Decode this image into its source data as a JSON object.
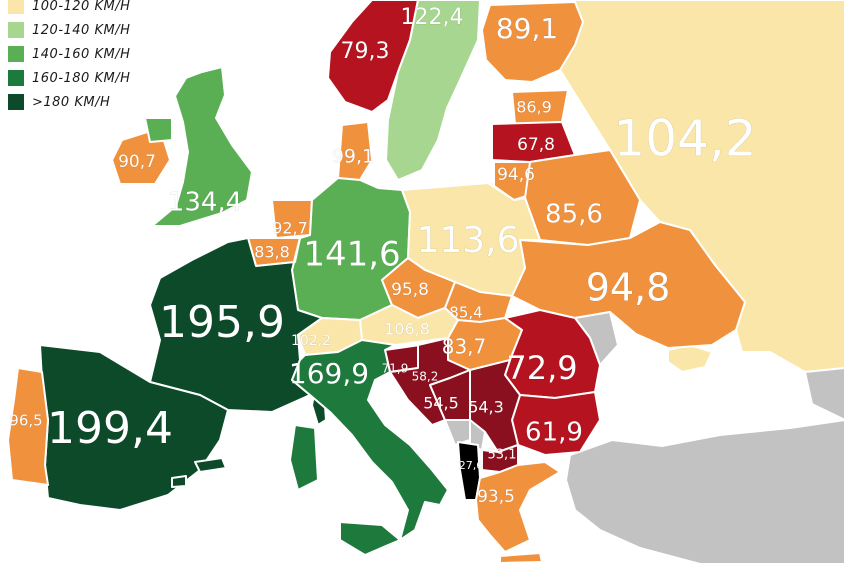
{
  "legend": {
    "items": [
      {
        "label": "100-120 KM/H",
        "color": "#fae6a8"
      },
      {
        "label": "120-140 KM/H",
        "color": "#a6d68f"
      },
      {
        "label": "140-160 KM/H",
        "color": "#5aaf55"
      },
      {
        "label": "160-180 KM/H",
        "color": "#1e7a3c"
      },
      {
        "label": ">180 KM/H",
        "color": "#0c4a2a"
      }
    ]
  },
  "category_colors": {
    "low": "#f0913e",
    "very_low": "#b5131f",
    "very_low_dark": "#8a1020",
    "lowest": "#000000",
    "no_data": "#c2c2c2",
    "sea": "#ffffff"
  },
  "countries": {
    "norway": {
      "value": "79,3"
    },
    "sweden": {
      "value": "122,4"
    },
    "finland": {
      "value": "89,1"
    },
    "russia": {
      "value": "104,2"
    },
    "estonia": {
      "value": "86,9"
    },
    "latvia": {
      "value": "67,8"
    },
    "lithuania": {
      "value": "94,6"
    },
    "belarus": {
      "value": "85,6"
    },
    "ukraine": {
      "value": "94,8"
    },
    "ireland": {
      "value": "90,7"
    },
    "uk": {
      "value": "134,4"
    },
    "denmark": {
      "value": "99,1"
    },
    "netherlands": {
      "value": "92,7"
    },
    "belgium": {
      "value": "83,8"
    },
    "germany": {
      "value": "141,6"
    },
    "poland": {
      "value": "113,6"
    },
    "czechia": {
      "value": "95,8"
    },
    "slovakia": {
      "value": "85,4"
    },
    "austria": {
      "value": "106,8"
    },
    "hungary": {
      "value": "83,7"
    },
    "france": {
      "value": "195,9"
    },
    "switzerland": {
      "value": "102,2"
    },
    "romania": {
      "value": "72,9"
    },
    "slovenia": {
      "value": "71,9"
    },
    "croatia": {
      "value": "58,2"
    },
    "bosnia": {
      "value": "54,5"
    },
    "serbia": {
      "value": "54,3"
    },
    "bulgaria": {
      "value": "61,9"
    },
    "italy": {
      "value": "169,9"
    },
    "spain": {
      "value": "199,4"
    },
    "portugal": {
      "value": "96,5"
    },
    "albania": {
      "value": "27,6"
    },
    "north_macedonia": {
      "value": "53,1"
    },
    "greece": {
      "value": "93,5"
    }
  }
}
